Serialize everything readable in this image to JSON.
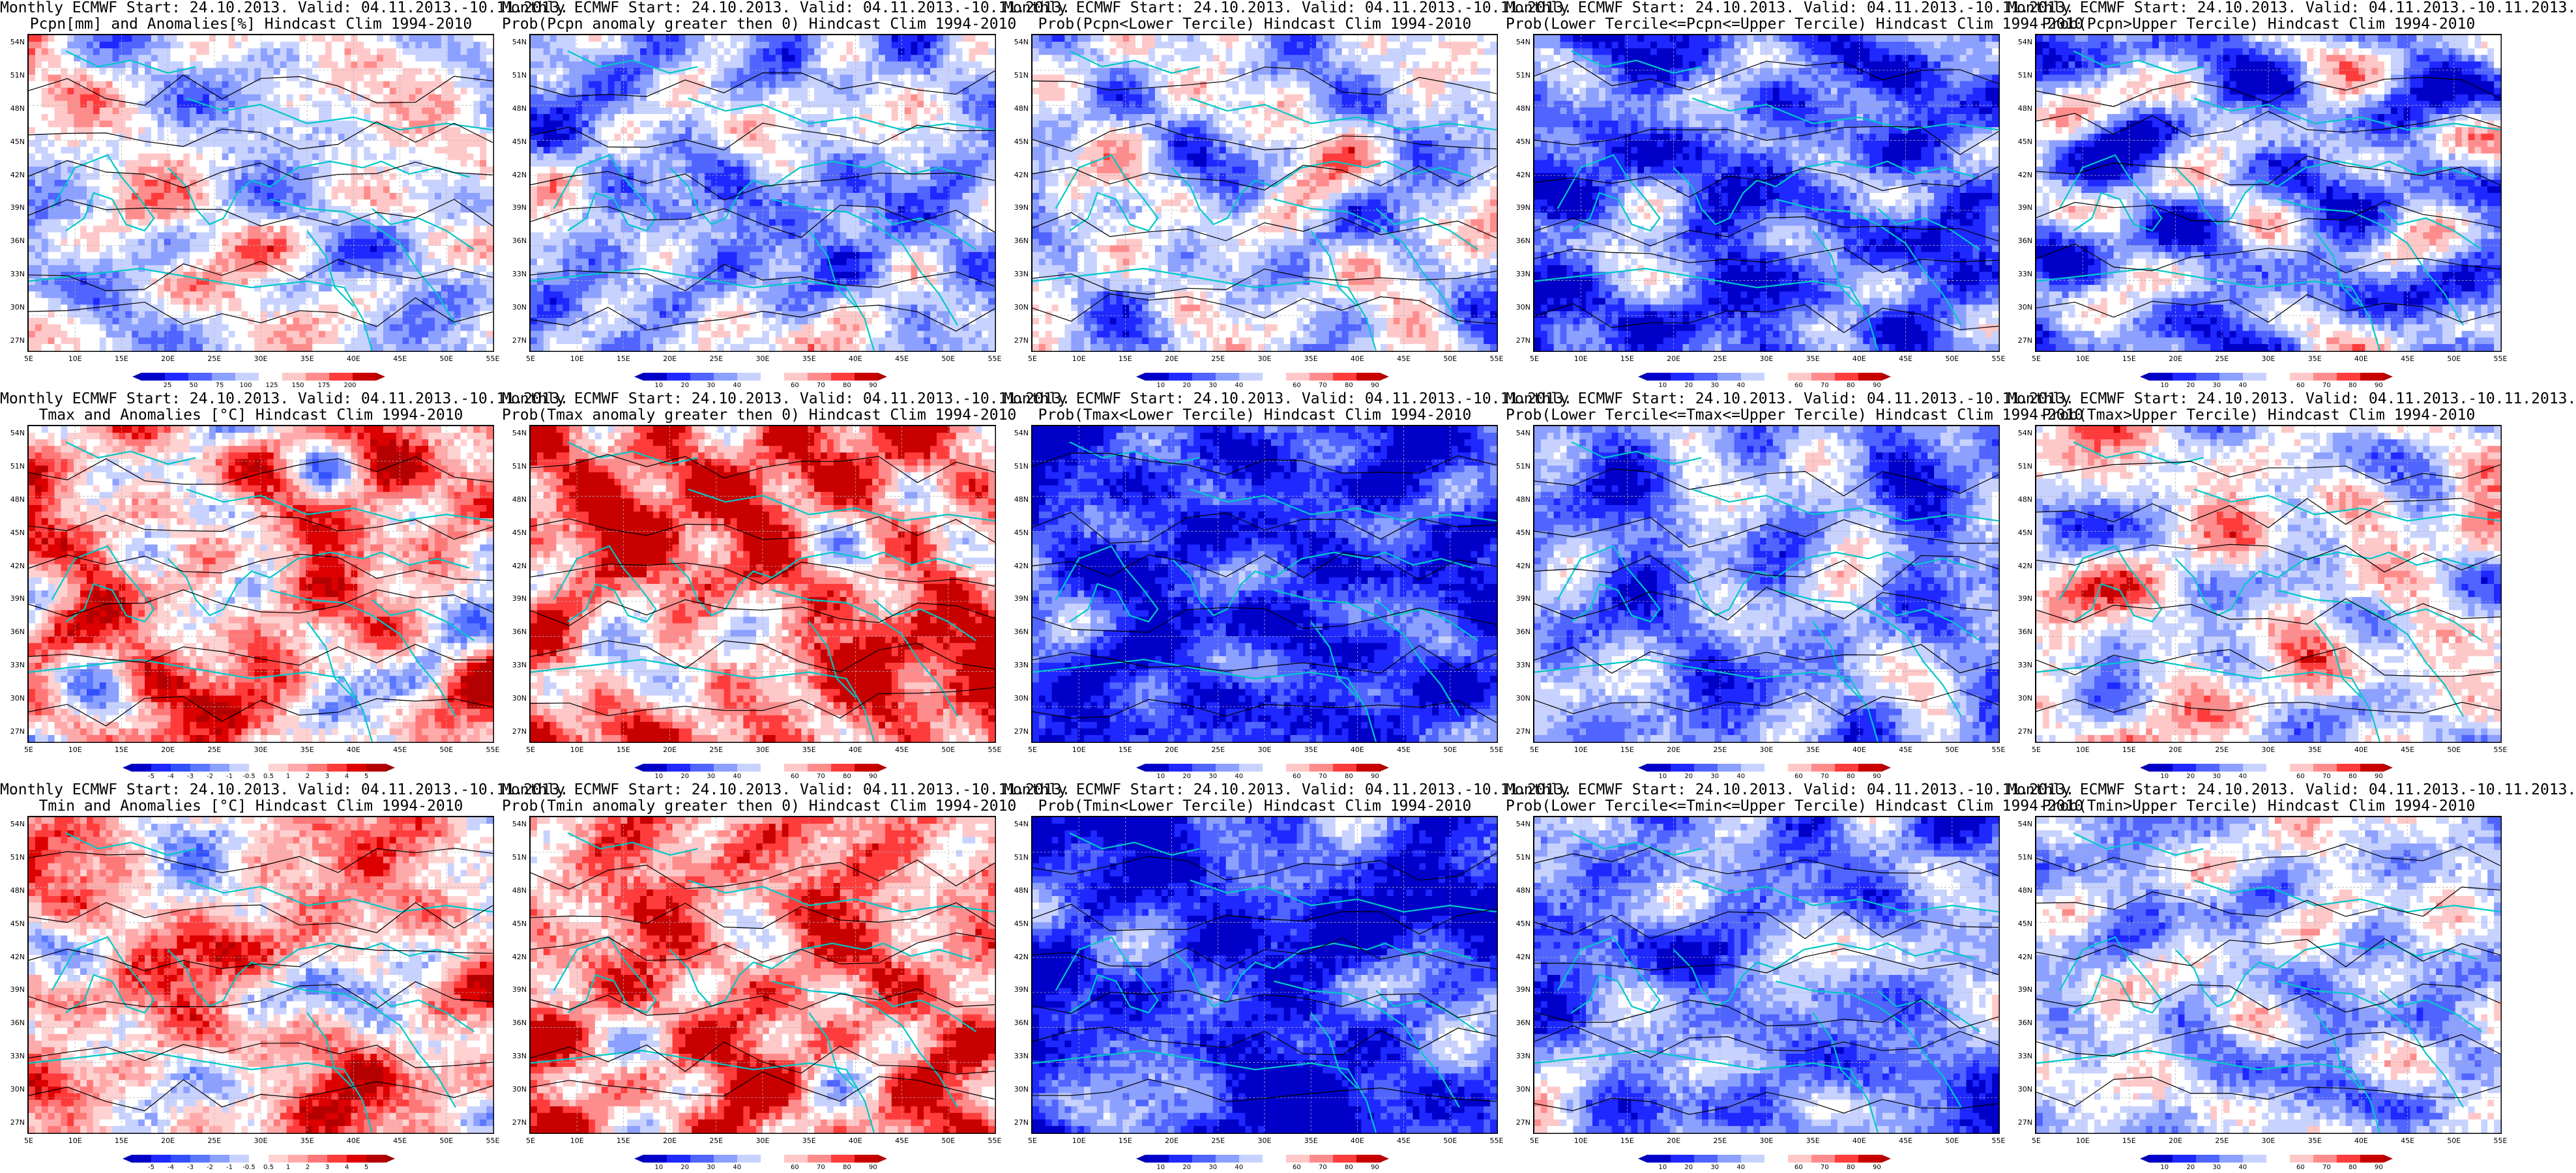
{
  "panels": [
    {
      "line1": "Monthly ECMWF Start: 24.10.2013. Valid: 04.11.2013.-10.11.2013.",
      "line2": "Pcpn[mm] and Anomalies[%] Hindcast Clim 1994-2010",
      "scale": "precip_anom",
      "palette": "precip",
      "seed": 11,
      "bias": 0.0,
      "contour": "#000000"
    },
    {
      "line1": "Monthly ECMWF Start: 24.10.2013. Valid: 04.11.2013.-10.11.2013.",
      "line2": "Prob(Pcpn anomaly greater then 0) Hindcast Clim 1994-2010",
      "scale": "prob",
      "palette": "prob",
      "seed": 12,
      "bias": -0.25,
      "contour": "#000000"
    },
    {
      "line1": "Monthly ECMWF Start: 24.10.2013. Valid: 04.11.2013.-10.11.2013.",
      "line2": "Prob(Pcpn<Lower Tercile) Hindcast Clim 1994-2010",
      "scale": "prob",
      "palette": "prob",
      "seed": 13,
      "bias": -0.1,
      "contour": "#000000"
    },
    {
      "line1": "Monthly ECMWF Start: 24.10.2013. Valid: 04.11.2013.-10.11.2013.",
      "line2": "Prob(Lower Tercile<=Pcpn<=Upper Tercile) Hindcast Clim 1994-2010",
      "scale": "prob",
      "palette": "prob",
      "seed": 14,
      "bias": -0.55,
      "contour": "#000000"
    },
    {
      "line1": "Monthly ECMWF Start: 24.10.2013. Valid: 04.11.2013.-10.11.2013.",
      "line2": "Prob(Pcpn>Upper Tercile) Hindcast Clim 1994-2010",
      "scale": "prob",
      "palette": "prob",
      "seed": 15,
      "bias": -0.35,
      "contour": "#000000"
    },
    {
      "line1": "Monthly ECMWF Start: 24.10.2013. Valid: 04.11.2013.-10.11.2013.",
      "line2": "Tmax and Anomalies [°C] Hindcast Clim 1994-2010",
      "scale": "temp_anom",
      "palette": "temp",
      "seed": 21,
      "bias": 0.3,
      "contour": "#000000"
    },
    {
      "line1": "Monthly ECMWF Start: 24.10.2013. Valid: 04.11.2013.-10.11.2013.",
      "line2": "Prob(Tmax anomaly greater then 0) Hindcast Clim 1994-2010",
      "scale": "prob",
      "palette": "prob",
      "seed": 22,
      "bias": 0.6,
      "contour": "#000000"
    },
    {
      "line1": "Monthly ECMWF Start: 24.10.2013. Valid: 04.11.2013.-10.11.2013.",
      "line2": "Prob(Tmax<Lower Tercile) Hindcast Clim 1994-2010",
      "scale": "prob",
      "palette": "prob",
      "seed": 23,
      "bias": -0.75,
      "contour": "#000000"
    },
    {
      "line1": "Monthly ECMWF Start: 24.10.2013. Valid: 04.11.2013.-10.11.2013.",
      "line2": "Prob(Lower Tercile<=Tmax<=Upper Tercile) Hindcast Clim 1994-2010",
      "scale": "prob",
      "palette": "prob",
      "seed": 24,
      "bias": -0.35,
      "contour": "#000000"
    },
    {
      "line1": "Monthly ECMWF Start: 24.10.2013. Valid: 04.11.2013.-10.11.2013.",
      "line2": "Prob(Tmax>Upper Tercile) Hindcast Clim 1994-2010",
      "scale": "prob",
      "palette": "prob",
      "seed": 25,
      "bias": 0.05,
      "contour": "#000000"
    },
    {
      "line1": "Monthly ECMWF Start: 24.10.2013. Valid: 04.11.2013.-10.11.2013.",
      "line2": "Tmin and Anomalies [°C] Hindcast Clim 1994-2010",
      "scale": "temp_anom",
      "palette": "temp",
      "seed": 31,
      "bias": 0.25,
      "contour": "#000000"
    },
    {
      "line1": "Monthly ECMWF Start: 24.10.2013. Valid: 04.11.2013.-10.11.2013.",
      "line2": "Prob(Tmin anomaly greater then 0) Hindcast Clim 1994-2010",
      "scale": "prob",
      "palette": "prob",
      "seed": 32,
      "bias": 0.55,
      "contour": "#000000"
    },
    {
      "line1": "Monthly ECMWF Start: 24.10.2013. Valid: 04.11.2013.-10.11.2013.",
      "line2": "Prob(Tmin<Lower Tercile) Hindcast Clim 1994-2010",
      "scale": "prob",
      "palette": "prob",
      "seed": 33,
      "bias": -0.75,
      "contour": "#000000"
    },
    {
      "line1": "Monthly ECMWF Start: 24.10.2013. Valid: 04.11.2013.-10.11.2013.",
      "line2": "Prob(Lower Tercile<=Tmin<=Upper Tercile) Hindcast Clim 1994-2010",
      "scale": "prob",
      "palette": "prob",
      "seed": 34,
      "bias": -0.4,
      "contour": "#000000"
    },
    {
      "line1": "Monthly ECMWF Start: 24.10.2013. Valid: 04.11.2013.-10.11.2013.",
      "line2": "Prob(Tmin>Upper Tercile) Hindcast Clim 1994-2010",
      "scale": "prob",
      "palette": "prob",
      "seed": 35,
      "bias": -0.15,
      "contour": "#000000"
    }
  ],
  "lat_labels": [
    "54N",
    "51N",
    "48N",
    "45N",
    "42N",
    "39N",
    "36N",
    "33N",
    "30N",
    "27N"
  ],
  "lon_labels": [
    "5E",
    "10E",
    "15E",
    "20E",
    "25E",
    "30E",
    "35E",
    "40E",
    "45E",
    "50E",
    "55E"
  ],
  "scales": {
    "prob": {
      "ticks": [
        "10",
        "20",
        "30",
        "40",
        "60",
        "70",
        "80",
        "90"
      ],
      "colors": [
        "#0000c8",
        "#1e28ff",
        "#5064ff",
        "#8ca0ff",
        "#c8d2ff",
        "#ffffff",
        "#ffc8c8",
        "#ff8c8c",
        "#ff3c3c",
        "#c80000"
      ],
      "left": "#0000b4",
      "right": "#b40000"
    },
    "precip_anom": {
      "ticks": [
        "25",
        "50",
        "75",
        "100",
        "125",
        "150",
        "175",
        "200"
      ],
      "colors": [
        "#0000c8",
        "#1e28ff",
        "#5064ff",
        "#8ca0ff",
        "#c8d2ff",
        "#ffffff",
        "#ffc8c8",
        "#ff8c8c",
        "#ff3c3c",
        "#c80000"
      ],
      "left": "#0000b4",
      "right": "#b40000"
    },
    "temp_anom": {
      "ticks": [
        "-5",
        "-4",
        "-3",
        "-2",
        "-1",
        "-0.5",
        "0.5",
        "1",
        "2",
        "3",
        "4",
        "5"
      ],
      "colors": [
        "#0000c8",
        "#1e28ff",
        "#3250ff",
        "#5a78ff",
        "#8ca0ff",
        "#c8d2ff",
        "#ffffff",
        "#ffd2d2",
        "#ffaaaa",
        "#ff7878",
        "#ff3c3c",
        "#dc0000",
        "#b40000"
      ],
      "left": "#0000b4",
      "right": "#a00000"
    }
  },
  "colors": {
    "coast": "#00c8c8",
    "grid": "#b0b0b0",
    "frame": "#000000"
  }
}
